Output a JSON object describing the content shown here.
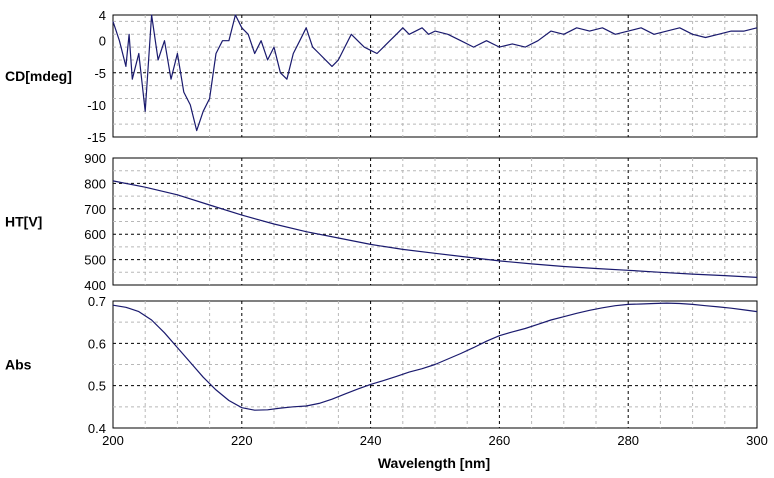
{
  "colors": {
    "line": "#1a1a6e",
    "major_grid": "#000000",
    "minor_grid": "#b8b8b8"
  },
  "chart_data": [
    {
      "type": "line",
      "ylabel": "CD[mdeg]",
      "xlim": [
        200,
        300
      ],
      "ylim": [
        -15,
        4
      ],
      "yticks": [
        4,
        0,
        -5,
        -10,
        -15
      ],
      "grid": true,
      "x": [
        200,
        201,
        202,
        202.5,
        203,
        204,
        205,
        206,
        207,
        208,
        209,
        210,
        211,
        212,
        213,
        214,
        215,
        216,
        217,
        218,
        219,
        220,
        221,
        222,
        223,
        224,
        225,
        226,
        227,
        228,
        229,
        230,
        231,
        232,
        233,
        234,
        235,
        236,
        237,
        238,
        239,
        240,
        241,
        242,
        243,
        244,
        245,
        246,
        247,
        248,
        249,
        250,
        252,
        254,
        256,
        258,
        260,
        262,
        264,
        266,
        268,
        270,
        272,
        274,
        276,
        278,
        280,
        282,
        284,
        286,
        288,
        290,
        292,
        294,
        296,
        298,
        300
      ],
      "y": [
        3,
        0,
        -4,
        1,
        -6,
        -2,
        -11,
        4,
        -3,
        0,
        -6,
        -2,
        -8,
        -10,
        -14,
        -11,
        -9,
        -2,
        0,
        0,
        4,
        2,
        1,
        -2,
        0,
        -3,
        -1,
        -5,
        -6,
        -2,
        0,
        2,
        -1,
        -2,
        -3,
        -4,
        -3,
        -1,
        1,
        0,
        -1,
        -1.5,
        -2,
        -1,
        0,
        1,
        2,
        1,
        1.5,
        2,
        1,
        1.5,
        1,
        0,
        -1,
        0,
        -1,
        -0.5,
        -1,
        0,
        1.5,
        1,
        2,
        1.5,
        2,
        1,
        1.5,
        2,
        1,
        1.5,
        2,
        1,
        0.5,
        1,
        1.5,
        1.5,
        2
      ]
    },
    {
      "type": "line",
      "ylabel": "HT[V]",
      "xlim": [
        200,
        300
      ],
      "ylim": [
        400,
        900
      ],
      "yticks": [
        900,
        800,
        700,
        600,
        500,
        400
      ],
      "grid": true,
      "x": [
        200,
        205,
        210,
        215,
        220,
        225,
        230,
        235,
        240,
        245,
        250,
        255,
        260,
        265,
        270,
        275,
        280,
        285,
        290,
        295,
        300
      ],
      "y": [
        810,
        785,
        755,
        715,
        675,
        640,
        610,
        585,
        560,
        540,
        525,
        510,
        495,
        483,
        473,
        465,
        458,
        450,
        443,
        437,
        430
      ]
    },
    {
      "type": "line",
      "ylabel": "Abs",
      "xlabel": "Wavelength [nm]",
      "xlim": [
        200,
        300
      ],
      "ylim": [
        0.4,
        0.7
      ],
      "yticks": [
        0.7,
        0.6,
        0.5,
        0.4
      ],
      "xticks": [
        200,
        220,
        240,
        260,
        280,
        300
      ],
      "grid": true,
      "x": [
        200,
        202,
        204,
        206,
        208,
        210,
        212,
        214,
        216,
        218,
        220,
        222,
        224,
        226,
        228,
        230,
        232,
        234,
        236,
        238,
        240,
        242,
        244,
        246,
        248,
        250,
        252,
        254,
        256,
        258,
        260,
        262,
        264,
        266,
        268,
        270,
        272,
        274,
        276,
        278,
        280,
        282,
        284,
        286,
        288,
        290,
        292,
        294,
        296,
        298,
        300
      ],
      "y": [
        0.69,
        0.685,
        0.675,
        0.655,
        0.625,
        0.59,
        0.555,
        0.52,
        0.49,
        0.465,
        0.448,
        0.442,
        0.443,
        0.447,
        0.45,
        0.452,
        0.458,
        0.468,
        0.48,
        0.492,
        0.503,
        0.512,
        0.522,
        0.532,
        0.54,
        0.55,
        0.563,
        0.576,
        0.59,
        0.605,
        0.618,
        0.627,
        0.635,
        0.645,
        0.655,
        0.663,
        0.671,
        0.678,
        0.684,
        0.689,
        0.692,
        0.693,
        0.694,
        0.695,
        0.694,
        0.692,
        0.689,
        0.686,
        0.683,
        0.679,
        0.675
      ]
    }
  ]
}
